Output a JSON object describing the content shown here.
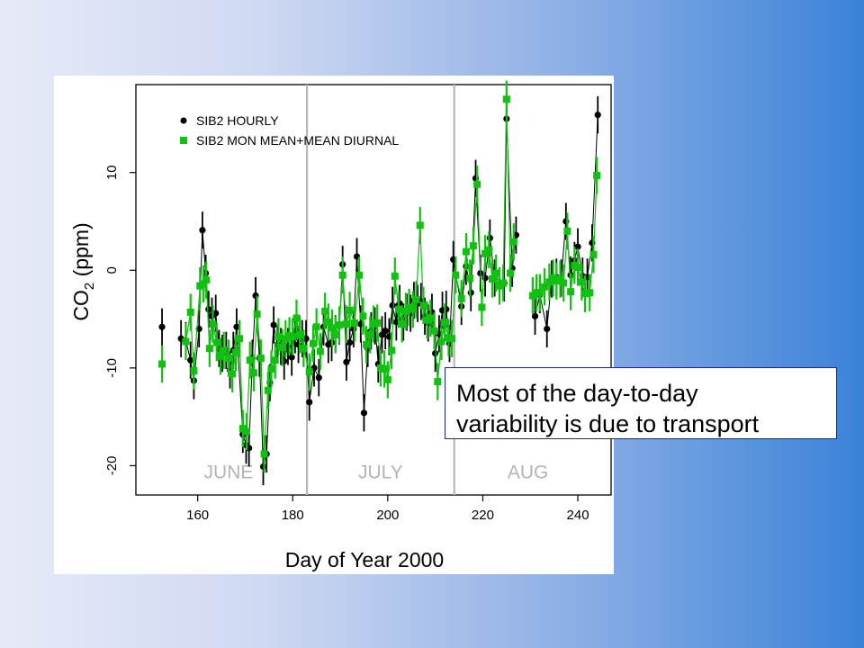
{
  "callout": {
    "line1": "Most of the day-to-day",
    "line2": "variability is due to transport"
  },
  "chart_data": {
    "type": "scatter",
    "title": "",
    "xlabel": "Day of Year 2000",
    "ylabel_main": "CO",
    "ylabel_sub": "2",
    "ylabel_unit": " (ppm)",
    "xlim": [
      147,
      247
    ],
    "ylim": [
      -23,
      19
    ],
    "xticks": [
      160,
      180,
      200,
      220,
      240
    ],
    "yticks": [
      -20,
      -10,
      0,
      10
    ],
    "grid": false,
    "legend_position": "top-left",
    "month_dividers": [
      183,
      214
    ],
    "month_labels": [
      {
        "label": "JUNE",
        "x": 166.5
      },
      {
        "label": "JULY",
        "x": 198.5
      },
      {
        "label": "AUG",
        "x": 229.5
      }
    ],
    "series": [
      {
        "name": "SIB2 HOURLY",
        "color": "#000000",
        "marker": "circle",
        "points": [
          [
            152.5,
            -5.8
          ],
          [
            156.5,
            -7.0
          ],
          [
            157.5,
            -7.2
          ],
          [
            158.5,
            -9.2
          ],
          [
            159.2,
            -11.3
          ],
          [
            160.3,
            -6.0
          ],
          [
            161.0,
            4.1
          ],
          [
            161.7,
            -0.3
          ],
          [
            162.3,
            -4.0
          ],
          [
            163.0,
            -4.7
          ],
          [
            163.8,
            -4.4
          ],
          [
            164.5,
            -8.0
          ],
          [
            165.2,
            -8.5
          ],
          [
            166.0,
            -8.2
          ],
          [
            166.8,
            -10.2
          ],
          [
            167.5,
            -8.2
          ],
          [
            168.2,
            -5.8
          ],
          [
            169.5,
            -16.8
          ],
          [
            170.2,
            -17.9
          ],
          [
            170.8,
            -18.2
          ],
          [
            171.5,
            -9.0
          ],
          [
            172.2,
            -2.6
          ],
          [
            173.0,
            -9.0
          ],
          [
            173.8,
            -20.1
          ],
          [
            174.5,
            -18.8
          ],
          [
            175.2,
            -11.5
          ],
          [
            176.0,
            -5.6
          ],
          [
            176.8,
            -7.6
          ],
          [
            177.5,
            -7.8
          ],
          [
            178.2,
            -9.3
          ],
          [
            179.0,
            -7.8
          ],
          [
            179.8,
            -8.9
          ],
          [
            180.5,
            -6.6
          ],
          [
            181.2,
            -7.6
          ],
          [
            182.0,
            -7.0
          ],
          [
            182.8,
            -7.0
          ],
          [
            183.5,
            -13.5
          ],
          [
            184.5,
            -10.0
          ],
          [
            185.5,
            -11.0
          ],
          [
            186.5,
            -5.8
          ],
          [
            187.5,
            -7.6
          ],
          [
            188.2,
            -7.4
          ],
          [
            189.0,
            -6.5
          ],
          [
            189.8,
            -5.7
          ],
          [
            190.5,
            0.6
          ],
          [
            191.3,
            -9.4
          ],
          [
            192.0,
            -7.4
          ],
          [
            192.8,
            -6.0
          ],
          [
            193.5,
            1.4
          ],
          [
            194.3,
            -5.5
          ],
          [
            195.0,
            -14.6
          ],
          [
            195.8,
            -8.0
          ],
          [
            196.5,
            -6.2
          ],
          [
            197.3,
            -5.7
          ],
          [
            198.0,
            -9.6
          ],
          [
            198.8,
            -6.6
          ],
          [
            199.5,
            -6.2
          ],
          [
            200.3,
            -6.8
          ],
          [
            201.0,
            -3.6
          ],
          [
            201.8,
            -5.3
          ],
          [
            202.5,
            -3.4
          ],
          [
            203.3,
            -5.3
          ],
          [
            204.0,
            -4.3
          ],
          [
            204.8,
            -4.4
          ],
          [
            205.5,
            -3.1
          ],
          [
            206.3,
            -3.4
          ],
          [
            207.0,
            -3.2
          ],
          [
            207.8,
            -4.7
          ],
          [
            208.5,
            -5.4
          ],
          [
            209.3,
            -4.3
          ],
          [
            210.0,
            -8.5
          ],
          [
            210.8,
            -6.5
          ],
          [
            211.5,
            -4.1
          ],
          [
            212.3,
            -4.0
          ],
          [
            213.0,
            -7.5
          ],
          [
            213.8,
            1.1
          ],
          [
            215.5,
            -3.7
          ],
          [
            216.5,
            0.4
          ],
          [
            217.5,
            -2.3
          ],
          [
            218.5,
            9.4
          ],
          [
            219.5,
            -0.3
          ],
          [
            220.5,
            -0.8
          ],
          [
            221.5,
            3.3
          ],
          [
            222.5,
            -0.8
          ],
          [
            223.5,
            -1.6
          ],
          [
            224.5,
            -1.3
          ],
          [
            225.0,
            15.5
          ],
          [
            226.2,
            0.2
          ],
          [
            227.0,
            3.6
          ],
          [
            231.0,
            -4.7
          ],
          [
            232.0,
            -2.5
          ],
          [
            233.5,
            -6.0
          ],
          [
            234.5,
            -0.9
          ],
          [
            235.5,
            -0.7
          ],
          [
            236.5,
            -0.8
          ],
          [
            237.5,
            5.0
          ],
          [
            238.5,
            -0.5
          ],
          [
            239.3,
            1.0
          ],
          [
            240.0,
            2.4
          ],
          [
            241.0,
            -0.6
          ],
          [
            242.0,
            -0.7
          ],
          [
            243.0,
            2.8
          ],
          [
            244.2,
            15.9
          ]
        ]
      },
      {
        "name": "SIB2 MON MEAN+MEAN DIURNAL",
        "color": "#11c011",
        "marker": "square",
        "points": [
          [
            152.5,
            -9.6
          ],
          [
            157.5,
            -7.3
          ],
          [
            158.5,
            -4.3
          ],
          [
            159.2,
            -10.3
          ],
          [
            160.5,
            -1.6
          ],
          [
            161.2,
            -1.4
          ],
          [
            161.8,
            -1.0
          ],
          [
            162.5,
            -8.0
          ],
          [
            163.2,
            -5.5
          ],
          [
            164.0,
            -7.4
          ],
          [
            164.8,
            -8.8
          ],
          [
            165.5,
            -8.2
          ],
          [
            166.5,
            -9.0
          ],
          [
            167.3,
            -10.6
          ],
          [
            168.0,
            -8.4
          ],
          [
            168.8,
            -7.0
          ],
          [
            169.5,
            -16.2
          ],
          [
            170.3,
            -16.5
          ],
          [
            171.0,
            -9.2
          ],
          [
            171.8,
            -10.5
          ],
          [
            172.5,
            -4.5
          ],
          [
            173.3,
            -9.0
          ],
          [
            174.0,
            -18.8
          ],
          [
            174.8,
            -12.3
          ],
          [
            175.5,
            -10.1
          ],
          [
            176.3,
            -9.2
          ],
          [
            177.0,
            -6.8
          ],
          [
            177.8,
            -7.9
          ],
          [
            178.5,
            -7.0
          ],
          [
            179.3,
            -6.7
          ],
          [
            180.0,
            -6.8
          ],
          [
            180.8,
            -4.9
          ],
          [
            181.5,
            -6.6
          ],
          [
            182.3,
            -8.0
          ],
          [
            183.5,
            -10.4
          ],
          [
            184.3,
            -7.5
          ],
          [
            185.0,
            -5.8
          ],
          [
            185.8,
            -8.3
          ],
          [
            186.8,
            -4.2
          ],
          [
            187.5,
            -5.3
          ],
          [
            188.3,
            -5.9
          ],
          [
            189.0,
            -6.6
          ],
          [
            189.8,
            -5.6
          ],
          [
            190.5,
            -0.5
          ],
          [
            191.3,
            -5.5
          ],
          [
            192.0,
            -4.1
          ],
          [
            193.0,
            -5.4
          ],
          [
            194.0,
            -0.5
          ],
          [
            194.8,
            -4.7
          ],
          [
            195.5,
            -7.6
          ],
          [
            196.3,
            -6.6
          ],
          [
            197.0,
            -5.5
          ],
          [
            197.8,
            -5.4
          ],
          [
            198.5,
            -10.0
          ],
          [
            199.3,
            -10.1
          ],
          [
            200.0,
            -11.2
          ],
          [
            200.8,
            -8.2
          ],
          [
            201.5,
            -0.6
          ],
          [
            202.3,
            -4.0
          ],
          [
            203.0,
            -5.5
          ],
          [
            203.8,
            -4.2
          ],
          [
            204.5,
            -3.8
          ],
          [
            205.3,
            -4.0
          ],
          [
            206.0,
            -3.0
          ],
          [
            206.8,
            4.6
          ],
          [
            207.5,
            -3.6
          ],
          [
            208.3,
            -5.1
          ],
          [
            209.0,
            -4.9
          ],
          [
            209.8,
            -6.2
          ],
          [
            210.5,
            -11.4
          ],
          [
            211.3,
            -7.3
          ],
          [
            212.0,
            -5.3
          ],
          [
            212.8,
            -6.9
          ],
          [
            213.5,
            -7.0
          ],
          [
            214.3,
            -0.5
          ],
          [
            215.5,
            -2.9
          ],
          [
            216.5,
            1.9
          ],
          [
            217.3,
            -0.8
          ],
          [
            218.0,
            2.5
          ],
          [
            218.8,
            8.8
          ],
          [
            219.8,
            -3.8
          ],
          [
            220.5,
            1.7
          ],
          [
            221.3,
            2.1
          ],
          [
            222.0,
            -0.9
          ],
          [
            222.8,
            -0.3
          ],
          [
            223.5,
            -1.6
          ],
          [
            224.3,
            -1.3
          ],
          [
            225.0,
            17.5
          ],
          [
            225.8,
            -0.3
          ],
          [
            226.5,
            2.9
          ],
          [
            230.5,
            -2.6
          ],
          [
            231.3,
            -2.3
          ],
          [
            232.0,
            -2.3
          ],
          [
            233.0,
            -1.7
          ],
          [
            234.0,
            -1.2
          ],
          [
            234.8,
            -0.8
          ],
          [
            235.5,
            -1.1
          ],
          [
            236.3,
            -0.9
          ],
          [
            237.0,
            -1.3
          ],
          [
            237.8,
            4.0
          ],
          [
            238.5,
            -2.2
          ],
          [
            239.3,
            0.5
          ],
          [
            240.0,
            0.3
          ],
          [
            240.8,
            -1.2
          ],
          [
            241.5,
            -2.4
          ],
          [
            242.5,
            -2.3
          ],
          [
            243.3,
            1.6
          ],
          [
            244.0,
            9.7
          ]
        ]
      }
    ]
  }
}
